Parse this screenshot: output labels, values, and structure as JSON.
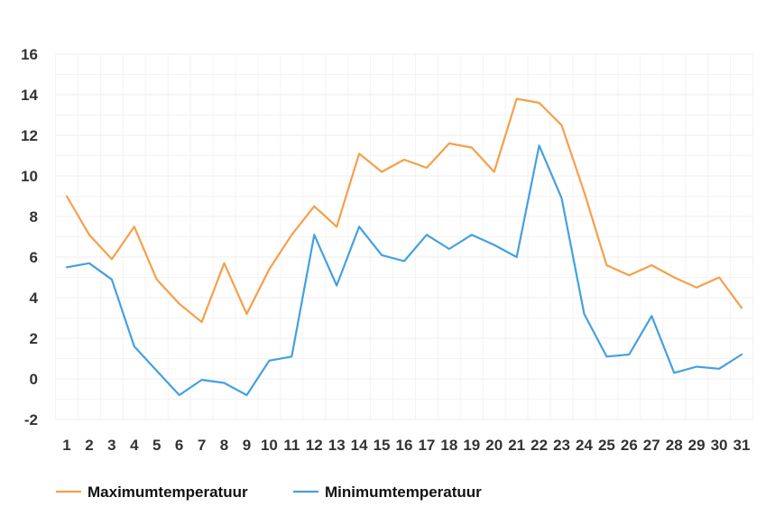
{
  "chart_data": {
    "type": "line",
    "title": "",
    "xlabel": "",
    "ylabel": "",
    "categories": [
      "1",
      "2",
      "3",
      "4",
      "5",
      "6",
      "7",
      "8",
      "9",
      "10",
      "11",
      "12",
      "13",
      "14",
      "15",
      "16",
      "17",
      "18",
      "19",
      "20",
      "21",
      "22",
      "23",
      "24",
      "25",
      "26",
      "27",
      "28",
      "29",
      "30",
      "31"
    ],
    "ylim": [
      -2,
      16
    ],
    "yticks": [
      "16",
      "14",
      "12",
      "10",
      "8",
      "6",
      "4",
      "2",
      "0",
      "-2"
    ],
    "grid": true,
    "legend_position": "bottom-left",
    "series": [
      {
        "name": "Maximumtemperatuur",
        "color": "#f5a04a",
        "values": [
          9.0,
          7.1,
          5.9,
          7.5,
          4.9,
          3.7,
          2.8,
          5.7,
          3.2,
          5.4,
          7.1,
          8.5,
          7.5,
          11.1,
          10.2,
          10.8,
          10.4,
          11.6,
          11.4,
          10.2,
          13.8,
          13.6,
          12.5,
          9.2,
          5.6,
          5.1,
          5.6,
          5.0,
          4.5,
          5.0,
          3.5
        ]
      },
      {
        "name": "Minimumtemperatuur",
        "color": "#45a0e0",
        "values": [
          5.5,
          5.7,
          4.9,
          1.6,
          0.4,
          -0.8,
          -0.05,
          -0.2,
          -0.8,
          0.9,
          1.1,
          7.1,
          4.6,
          7.5,
          6.1,
          5.8,
          7.1,
          6.4,
          7.1,
          6.6,
          6.0,
          11.5,
          8.9,
          3.2,
          1.1,
          1.2,
          3.1,
          0.3,
          0.6,
          0.5,
          1.2
        ]
      }
    ]
  }
}
